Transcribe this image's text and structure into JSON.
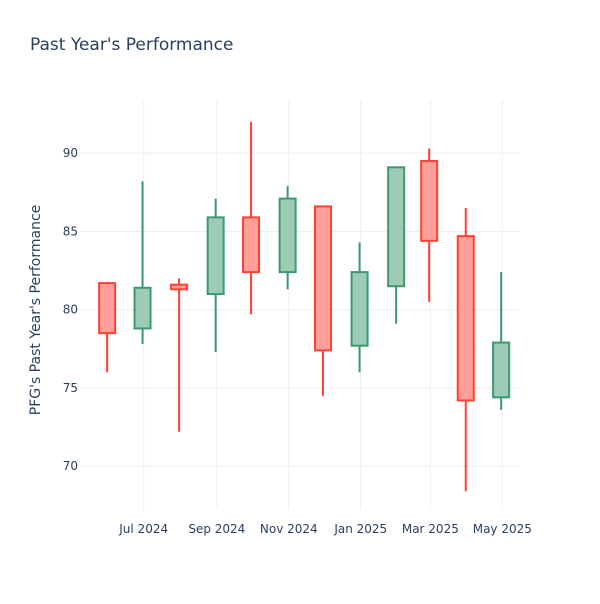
{
  "chart_data": {
    "type": "candlestick",
    "title": "Past Year's Performance",
    "xlabel": "",
    "ylabel": "PFG's Past Year's Performance",
    "ylim": [
      67.2,
      93.4
    ],
    "yticks": [
      70,
      75,
      80,
      85,
      90
    ],
    "xticks": [
      {
        "label": "Jul 2024",
        "date": "2024-07-01"
      },
      {
        "label": "Sep 2024",
        "date": "2024-09-01"
      },
      {
        "label": "Nov 2024",
        "date": "2024-11-01"
      },
      {
        "label": "Jan 2025",
        "date": "2025-01-01"
      },
      {
        "label": "Mar 2025",
        "date": "2025-03-01"
      },
      {
        "label": "May 2025",
        "date": "2025-05-01"
      }
    ],
    "xrange": [
      "2024-05-08",
      "2025-05-16"
    ],
    "grid": true,
    "colors": {
      "increasing_line": "#3d9970",
      "increasing_fill": "#9ecbb5",
      "decreasing_line": "#ff4136",
      "decreasing_fill": "#ff9f9a",
      "grid": "#eeeeee",
      "text": "#2a3f5f"
    },
    "candles": [
      {
        "date": "2024-05-31",
        "open": 81.7,
        "high": 81.7,
        "low": 76.0,
        "close": 78.5
      },
      {
        "date": "2024-06-30",
        "open": 78.8,
        "high": 88.2,
        "low": 77.8,
        "close": 81.4
      },
      {
        "date": "2024-07-31",
        "open": 81.6,
        "high": 82.0,
        "low": 72.2,
        "close": 81.3
      },
      {
        "date": "2024-08-31",
        "open": 81.0,
        "high": 87.1,
        "low": 77.3,
        "close": 85.9
      },
      {
        "date": "2024-09-30",
        "open": 85.9,
        "high": 92.0,
        "low": 79.7,
        "close": 82.4
      },
      {
        "date": "2024-10-31",
        "open": 82.4,
        "high": 87.9,
        "low": 81.3,
        "close": 87.1
      },
      {
        "date": "2024-11-30",
        "open": 86.6,
        "high": 86.6,
        "low": 74.5,
        "close": 77.4
      },
      {
        "date": "2024-12-31",
        "open": 77.7,
        "high": 84.3,
        "low": 76.0,
        "close": 82.4
      },
      {
        "date": "2025-01-31",
        "open": 81.5,
        "high": 89.1,
        "low": 79.1,
        "close": 89.1
      },
      {
        "date": "2025-02-28",
        "open": 89.5,
        "high": 90.3,
        "low": 80.5,
        "close": 84.4
      },
      {
        "date": "2025-03-31",
        "open": 84.7,
        "high": 86.5,
        "low": 68.4,
        "close": 74.2
      },
      {
        "date": "2025-04-30",
        "open": 74.4,
        "high": 82.4,
        "low": 73.6,
        "close": 77.9
      }
    ]
  }
}
